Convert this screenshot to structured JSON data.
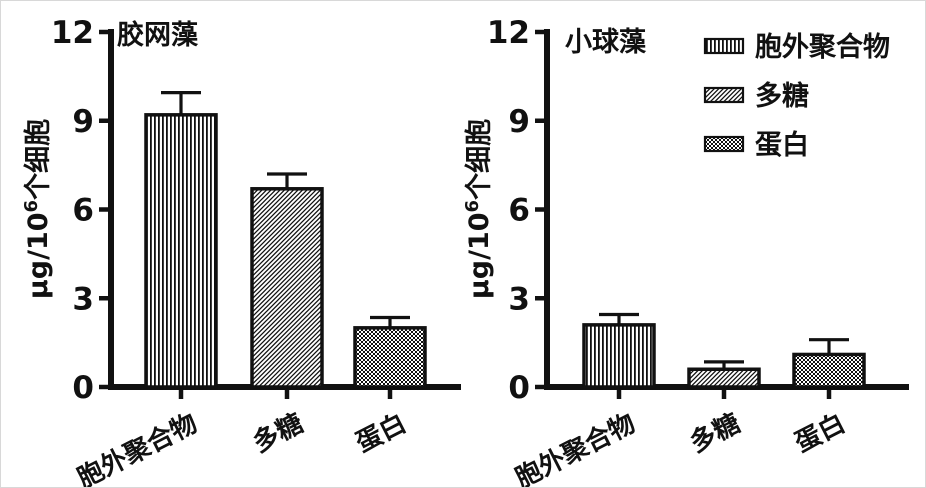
{
  "figure": {
    "background": "#ffffff",
    "ink": "#111111",
    "border_color": "#d8d8d8"
  },
  "chart_data": [
    {
      "type": "bar",
      "title": "胶网藻",
      "ylabel": "μg/10⁶个细胞",
      "ylabel_parts": {
        "pre": "μg/10",
        "sup": "6",
        "post": "个细胞"
      },
      "categories": [
        "胞外聚合物",
        "多糖",
        "蛋白"
      ],
      "values": [
        9.2,
        6.7,
        2.0
      ],
      "errors": [
        0.75,
        0.5,
        0.35
      ],
      "patterns": [
        "vertical-stripes",
        "diagonal-hatch",
        "checkerboard"
      ],
      "ylim": [
        0,
        12
      ],
      "yticks": [
        0,
        3,
        6,
        9,
        12
      ],
      "grid": false
    },
    {
      "type": "bar",
      "title": "小球藻",
      "ylabel": "μg/10⁶个细胞",
      "ylabel_parts": {
        "pre": "μg/10",
        "sup": "6",
        "post": "个细胞"
      },
      "categories": [
        "胞外聚合物",
        "多糖",
        "蛋白"
      ],
      "values": [
        2.1,
        0.6,
        1.1
      ],
      "errors": [
        0.35,
        0.25,
        0.5
      ],
      "patterns": [
        "vertical-stripes",
        "diagonal-hatch",
        "checkerboard"
      ],
      "ylim": [
        0,
        12
      ],
      "yticks": [
        0,
        3,
        6,
        9,
        12
      ],
      "grid": false,
      "legend": {
        "position": "top-right",
        "entries": [
          {
            "label": "胞外聚合物",
            "pattern": "vertical-stripes"
          },
          {
            "label": "多糖",
            "pattern": "diagonal-hatch"
          },
          {
            "label": "蛋白",
            "pattern": "checkerboard"
          }
        ]
      }
    }
  ]
}
